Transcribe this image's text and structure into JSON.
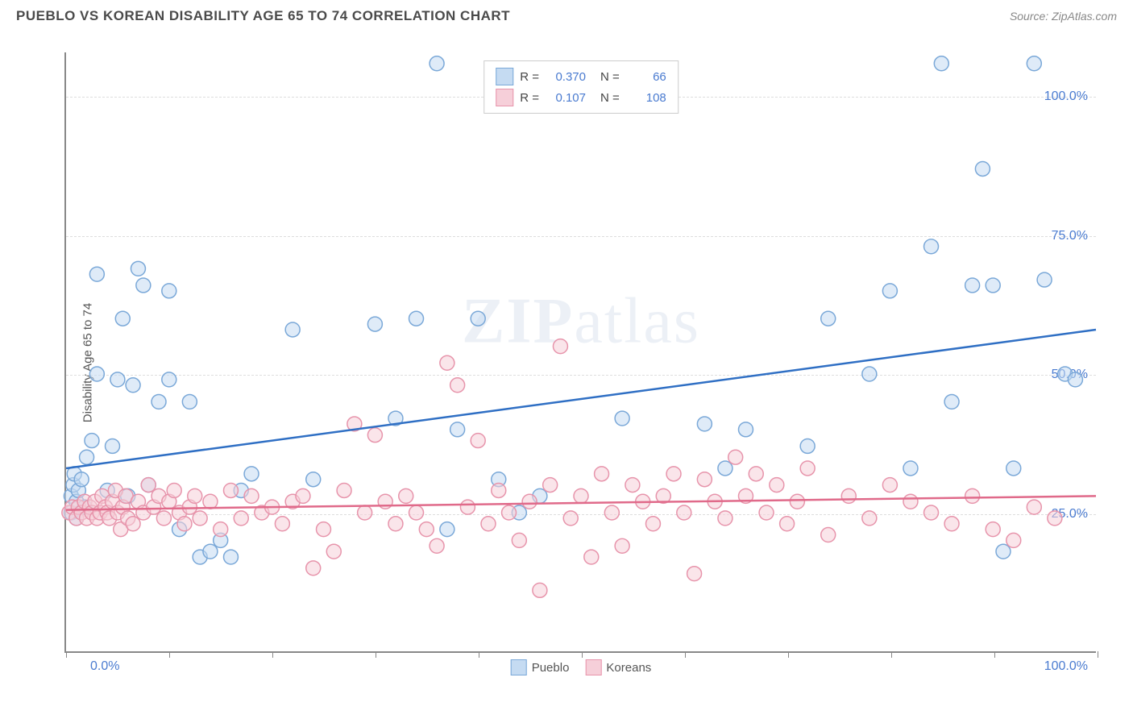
{
  "title": "PUEBLO VS KOREAN DISABILITY AGE 65 TO 74 CORRELATION CHART",
  "source_label": "Source: ZipAtlas.com",
  "y_axis_title": "Disability Age 65 to 74",
  "watermark_bold": "ZIP",
  "watermark_light": "atlas",
  "chart": {
    "type": "scatter",
    "background_color": "#ffffff",
    "grid_color": "#dddddd",
    "axis_color": "#888888",
    "xlim": [
      0,
      100
    ],
    "ylim": [
      0,
      108
    ],
    "x_ticks": [
      0,
      10,
      20,
      30,
      40,
      50,
      60,
      70,
      80,
      90,
      100
    ],
    "y_gridlines": [
      25,
      50,
      75,
      100
    ],
    "y_tick_labels": {
      "25": "25.0%",
      "50": "50.0%",
      "75": "75.0%",
      "100": "100.0%"
    },
    "x_label_min": "0.0%",
    "x_label_max": "100.0%",
    "marker_radius": 9,
    "marker_opacity": 0.55,
    "line_width": 2.5,
    "label_fontsize": 16,
    "label_color": "#4a7bd0"
  },
  "legend_top": {
    "r_label": "R =",
    "n_label": "N =",
    "rows": [
      {
        "swatch_fill": "#c5dbf2",
        "swatch_stroke": "#7aa8d8",
        "r": "0.370",
        "n": "66"
      },
      {
        "swatch_fill": "#f6cfd9",
        "swatch_stroke": "#e794ab",
        "r": "0.107",
        "n": "108"
      }
    ]
  },
  "legend_bottom": {
    "items": [
      {
        "swatch_fill": "#c5dbf2",
        "swatch_stroke": "#7aa8d8",
        "label": "Pueblo"
      },
      {
        "swatch_fill": "#f6cfd9",
        "swatch_stroke": "#e794ab",
        "label": "Koreans"
      }
    ]
  },
  "series": [
    {
      "name": "Pueblo",
      "marker_fill": "#c5dbf2",
      "marker_stroke": "#7aa8d8",
      "line_color": "#2f6fc4",
      "regression": {
        "x1": 0,
        "y1": 33,
        "x2": 100,
        "y2": 58
      },
      "points": [
        [
          0.5,
          25
        ],
        [
          0.5,
          28
        ],
        [
          0.7,
          30
        ],
        [
          0.8,
          32
        ],
        [
          1,
          24
        ],
        [
          1,
          27
        ],
        [
          1.2,
          29
        ],
        [
          1.5,
          31
        ],
        [
          1.8,
          26
        ],
        [
          2,
          35
        ],
        [
          2.5,
          38
        ],
        [
          3,
          50
        ],
        [
          3,
          68
        ],
        [
          4,
          29
        ],
        [
          4.5,
          37
        ],
        [
          5,
          49
        ],
        [
          5.5,
          60
        ],
        [
          6,
          28
        ],
        [
          6.5,
          48
        ],
        [
          7,
          69
        ],
        [
          7.5,
          66
        ],
        [
          8,
          30
        ],
        [
          9,
          45
        ],
        [
          10,
          49
        ],
        [
          10,
          65
        ],
        [
          11,
          22
        ],
        [
          12,
          45
        ],
        [
          13,
          17
        ],
        [
          14,
          18
        ],
        [
          15,
          20
        ],
        [
          16,
          17
        ],
        [
          17,
          29
        ],
        [
          18,
          32
        ],
        [
          22,
          58
        ],
        [
          24,
          31
        ],
        [
          30,
          59
        ],
        [
          32,
          42
        ],
        [
          34,
          60
        ],
        [
          36,
          106
        ],
        [
          37,
          22
        ],
        [
          38,
          40
        ],
        [
          40,
          60
        ],
        [
          42,
          31
        ],
        [
          44,
          25
        ],
        [
          46,
          28
        ],
        [
          54,
          42
        ],
        [
          62,
          41
        ],
        [
          64,
          33
        ],
        [
          66,
          40
        ],
        [
          72,
          37
        ],
        [
          74,
          60
        ],
        [
          78,
          50
        ],
        [
          80,
          65
        ],
        [
          82,
          33
        ],
        [
          84,
          73
        ],
        [
          85,
          106
        ],
        [
          86,
          45
        ],
        [
          88,
          66
        ],
        [
          89,
          87
        ],
        [
          90,
          66
        ],
        [
          91,
          18
        ],
        [
          92,
          33
        ],
        [
          94,
          106
        ],
        [
          95,
          67
        ],
        [
          97,
          50
        ],
        [
          98,
          49
        ]
      ]
    },
    {
      "name": "Koreans",
      "marker_fill": "#f6cfd9",
      "marker_stroke": "#e794ab",
      "line_color": "#e06a8a",
      "regression": {
        "x1": 0,
        "y1": 25.5,
        "x2": 100,
        "y2": 28
      },
      "points": [
        [
          0.3,
          25
        ],
        [
          0.6,
          26
        ],
        [
          1,
          24
        ],
        [
          1.2,
          26
        ],
        [
          1.5,
          25
        ],
        [
          1.8,
          27
        ],
        [
          2,
          24
        ],
        [
          2.3,
          26
        ],
        [
          2.5,
          25
        ],
        [
          2.8,
          27
        ],
        [
          3,
          24
        ],
        [
          3.3,
          25
        ],
        [
          3.5,
          28
        ],
        [
          3.8,
          26
        ],
        [
          4,
          25
        ],
        [
          4.2,
          24
        ],
        [
          4.5,
          27
        ],
        [
          4.8,
          29
        ],
        [
          5,
          25
        ],
        [
          5.3,
          22
        ],
        [
          5.5,
          26
        ],
        [
          5.8,
          28
        ],
        [
          6,
          24
        ],
        [
          6.5,
          23
        ],
        [
          7,
          27
        ],
        [
          7.5,
          25
        ],
        [
          8,
          30
        ],
        [
          8.5,
          26
        ],
        [
          9,
          28
        ],
        [
          9.5,
          24
        ],
        [
          10,
          27
        ],
        [
          10.5,
          29
        ],
        [
          11,
          25
        ],
        [
          11.5,
          23
        ],
        [
          12,
          26
        ],
        [
          12.5,
          28
        ],
        [
          13,
          24
        ],
        [
          14,
          27
        ],
        [
          15,
          22
        ],
        [
          16,
          29
        ],
        [
          17,
          24
        ],
        [
          18,
          28
        ],
        [
          19,
          25
        ],
        [
          20,
          26
        ],
        [
          21,
          23
        ],
        [
          22,
          27
        ],
        [
          23,
          28
        ],
        [
          24,
          15
        ],
        [
          25,
          22
        ],
        [
          26,
          18
        ],
        [
          27,
          29
        ],
        [
          28,
          41
        ],
        [
          29,
          25
        ],
        [
          30,
          39
        ],
        [
          31,
          27
        ],
        [
          32,
          23
        ],
        [
          33,
          28
        ],
        [
          34,
          25
        ],
        [
          35,
          22
        ],
        [
          36,
          19
        ],
        [
          37,
          52
        ],
        [
          38,
          48
        ],
        [
          39,
          26
        ],
        [
          40,
          38
        ],
        [
          41,
          23
        ],
        [
          42,
          29
        ],
        [
          43,
          25
        ],
        [
          44,
          20
        ],
        [
          45,
          27
        ],
        [
          46,
          11
        ],
        [
          47,
          30
        ],
        [
          48,
          55
        ],
        [
          49,
          24
        ],
        [
          50,
          28
        ],
        [
          51,
          17
        ],
        [
          52,
          32
        ],
        [
          53,
          25
        ],
        [
          54,
          19
        ],
        [
          55,
          30
        ],
        [
          56,
          27
        ],
        [
          57,
          23
        ],
        [
          58,
          28
        ],
        [
          59,
          32
        ],
        [
          60,
          25
        ],
        [
          61,
          14
        ],
        [
          62,
          31
        ],
        [
          63,
          27
        ],
        [
          64,
          24
        ],
        [
          65,
          35
        ],
        [
          66,
          28
        ],
        [
          67,
          32
        ],
        [
          68,
          25
        ],
        [
          69,
          30
        ],
        [
          70,
          23
        ],
        [
          71,
          27
        ],
        [
          72,
          33
        ],
        [
          74,
          21
        ],
        [
          76,
          28
        ],
        [
          78,
          24
        ],
        [
          80,
          30
        ],
        [
          82,
          27
        ],
        [
          84,
          25
        ],
        [
          86,
          23
        ],
        [
          88,
          28
        ],
        [
          90,
          22
        ],
        [
          92,
          20
        ],
        [
          94,
          26
        ],
        [
          96,
          24
        ]
      ]
    }
  ]
}
